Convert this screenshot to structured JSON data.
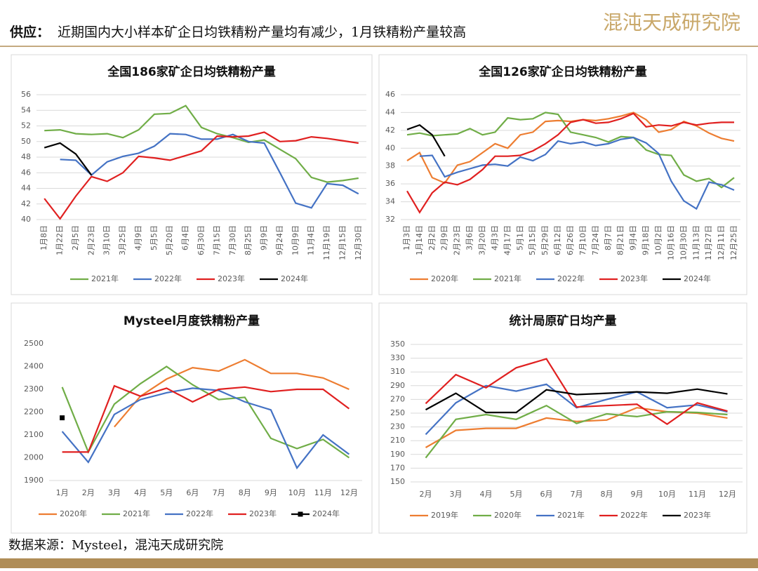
{
  "header": {
    "label": "供应：",
    "text": "近期国内大小样本矿企日均铁精粉产量均有减少，1月铁精粉产量较高",
    "brand": "混沌天成研究院"
  },
  "source": "数据来源：Mysteel，混沌天成研究院",
  "chart_data": [
    {
      "type": "line",
      "title": "全国186家矿企日均铁精粉产量",
      "categories": [
        "1月8日",
        "1月22日",
        "2月5日",
        "2月23日",
        "3月10日",
        "3月25日",
        "4月9日",
        "5月5日",
        "5月20日",
        "6月4日",
        "6月30日",
        "7月15日",
        "7月30日",
        "8月25日",
        "9月9日",
        "9月24日",
        "10月9日",
        "11月4日",
        "11月19日",
        "12月15日",
        "12月30日"
      ],
      "ylim": [
        40,
        56
      ],
      "yticks": [
        40,
        42,
        44,
        46,
        48,
        50,
        52,
        54,
        56
      ],
      "grid": true,
      "series": [
        {
          "name": "2021年",
          "color": "#70ad47",
          "values": [
            51.4,
            51.5,
            51.0,
            50.9,
            51.0,
            50.5,
            51.5,
            53.5,
            53.6,
            54.6,
            51.8,
            51.0,
            50.5,
            49.9,
            50.2,
            49.0,
            47.8,
            45.4,
            44.8,
            45.0,
            45.3
          ]
        },
        {
          "name": "2022年",
          "color": "#4472c4",
          "values": [
            null,
            47.7,
            47.6,
            45.7,
            47.4,
            48.1,
            48.5,
            49.4,
            51.0,
            50.9,
            50.3,
            50.3,
            50.9,
            50.0,
            49.8,
            46.0,
            42.1,
            41.5,
            44.6,
            44.4,
            43.3
          ]
        },
        {
          "name": "2023年",
          "color": "#e02020",
          "values": [
            42.7,
            40.1,
            43.0,
            45.5,
            44.9,
            46.0,
            48.1,
            47.9,
            47.6,
            48.2,
            48.8,
            50.7,
            50.6,
            50.7,
            51.2,
            50.0,
            50.1,
            50.6,
            50.4,
            50.1,
            49.8
          ]
        },
        {
          "name": "2024年",
          "color": "#000000",
          "values": [
            49.2,
            49.8,
            48.4,
            45.7,
            null,
            null,
            null,
            null,
            null,
            null,
            null,
            null,
            null,
            null,
            null,
            null,
            null,
            null,
            null,
            null,
            null
          ]
        }
      ]
    },
    {
      "type": "line",
      "title": "全国126家矿企日均铁精粉产量",
      "categories": [
        "1月3日",
        "1月14日",
        "2月2日",
        "2月9日",
        "2月23日",
        "3月6日",
        "3月20日",
        "4月3日",
        "4月17日",
        "5月1日",
        "5月15日",
        "5月29日",
        "6月12日",
        "6月26日",
        "7月10日",
        "7月24日",
        "8月7日",
        "8月21日",
        "9月4日",
        "9月18日",
        "10月2日",
        "10月16日",
        "10月30日",
        "11月13日",
        "11月27日",
        "12月11日",
        "12月25日"
      ],
      "ylim": [
        32,
        46
      ],
      "yticks": [
        32,
        34,
        36,
        38,
        40,
        42,
        44,
        46
      ],
      "grid": true,
      "series": [
        {
          "name": "2020年",
          "color": "#ed7d31",
          "values": [
            38.6,
            39.5,
            36.7,
            36.1,
            38.1,
            38.5,
            39.5,
            40.5,
            40.0,
            41.5,
            41.8,
            43.0,
            43.1,
            43.0,
            43.2,
            43.1,
            43.3,
            43.6,
            44.0,
            43.2,
            41.8,
            42.1,
            43.0,
            42.5,
            41.7,
            41.1,
            40.8
          ]
        },
        {
          "name": "2021年",
          "color": "#70ad47",
          "values": [
            41.5,
            41.7,
            41.4,
            41.5,
            41.6,
            42.2,
            41.5,
            41.8,
            43.4,
            43.2,
            43.3,
            44.0,
            43.8,
            41.8,
            41.5,
            41.2,
            40.7,
            41.3,
            41.2,
            39.8,
            39.3,
            39.2,
            37.0,
            36.3,
            36.6,
            35.6,
            36.7
          ]
        },
        {
          "name": "2022年",
          "color": "#4472c4",
          "values": [
            null,
            39.1,
            39.2,
            36.8,
            37.3,
            37.7,
            38.1,
            38.2,
            38.0,
            39.0,
            38.6,
            39.3,
            40.8,
            40.5,
            40.7,
            40.3,
            40.5,
            41.0,
            41.2,
            40.6,
            39.4,
            36.3,
            34.1,
            33.2,
            36.2,
            35.9,
            35.3
          ]
        },
        {
          "name": "2023年",
          "color": "#e02020",
          "values": [
            35.2,
            32.8,
            35.0,
            36.2,
            35.9,
            36.5,
            37.6,
            39.1,
            39.1,
            39.2,
            39.7,
            40.5,
            41.5,
            42.9,
            43.2,
            42.8,
            42.9,
            43.3,
            43.9,
            42.4,
            42.6,
            42.5,
            42.9,
            42.6,
            42.8,
            42.9,
            42.9
          ]
        },
        {
          "name": "2024年",
          "color": "#000000",
          "values": [
            42.1,
            42.6,
            41.5,
            39.1,
            null,
            null,
            null,
            null,
            null,
            null,
            null,
            null,
            null,
            null,
            null,
            null,
            null,
            null,
            null,
            null,
            null,
            null,
            null,
            null,
            null,
            null,
            null
          ]
        }
      ]
    },
    {
      "type": "line",
      "title": "Mysteel月度铁精粉产量",
      "categories": [
        "1月",
        "2月",
        "3月",
        "4月",
        "5月",
        "6月",
        "7月",
        "8月",
        "9月",
        "10月",
        "11月",
        "12月"
      ],
      "ylim": [
        1900,
        2500
      ],
      "yticks": [
        1900,
        2000,
        2100,
        2200,
        2300,
        2400,
        2500
      ],
      "grid": false,
      "series": [
        {
          "name": "2020年",
          "color": "#ed7d31",
          "values": [
            null,
            null,
            2135,
            2270,
            2345,
            2395,
            2380,
            2430,
            2370,
            2370,
            2350,
            2300
          ]
        },
        {
          "name": "2021年",
          "color": "#70ad47",
          "values": [
            2310,
            2025,
            2235,
            2325,
            2400,
            2320,
            2255,
            2265,
            2085,
            2040,
            2080,
            2000
          ]
        },
        {
          "name": "2022年",
          "color": "#4472c4",
          "values": [
            2115,
            1980,
            2190,
            2255,
            2285,
            2305,
            2295,
            2245,
            2210,
            1955,
            2100,
            2015
          ]
        },
        {
          "name": "2023年",
          "color": "#e02020",
          "values": [
            2025,
            2025,
            2315,
            2270,
            2305,
            2245,
            2300,
            2310,
            2290,
            2300,
            2300,
            2215
          ]
        },
        {
          "name": "2024年",
          "color": "#000000",
          "marker": "square",
          "values": [
            2175,
            null,
            null,
            null,
            null,
            null,
            null,
            null,
            null,
            null,
            null,
            null
          ]
        }
      ]
    },
    {
      "type": "line",
      "title": "统计局原矿日均产量",
      "categories": [
        "2月",
        "3月",
        "4月",
        "5月",
        "6月",
        "7月",
        "8月",
        "9月",
        "10月",
        "11月",
        "12月"
      ],
      "ylim": [
        150,
        350
      ],
      "yticks": [
        150,
        170,
        190,
        210,
        230,
        250,
        270,
        290,
        310,
        330,
        350
      ],
      "grid": true,
      "series": [
        {
          "name": "2019年",
          "color": "#ed7d31",
          "values": [
            200,
            225,
            228,
            228,
            243,
            238,
            240,
            258,
            252,
            250,
            243
          ]
        },
        {
          "name": "2020年",
          "color": "#70ad47",
          "values": [
            185,
            241,
            248,
            241,
            261,
            235,
            249,
            245,
            252,
            251,
            248
          ]
        },
        {
          "name": "2021年",
          "color": "#4472c4",
          "values": [
            219,
            265,
            290,
            282,
            292,
            258,
            270,
            281,
            258,
            262,
            252
          ]
        },
        {
          "name": "2022年",
          "color": "#e02020",
          "values": [
            264,
            306,
            287,
            316,
            329,
            259,
            261,
            263,
            234,
            265,
            253
          ]
        },
        {
          "name": "2023年",
          "color": "#000000",
          "values": [
            255,
            279,
            251,
            251,
            284,
            277,
            279,
            281,
            279,
            285,
            278
          ]
        }
      ]
    }
  ]
}
